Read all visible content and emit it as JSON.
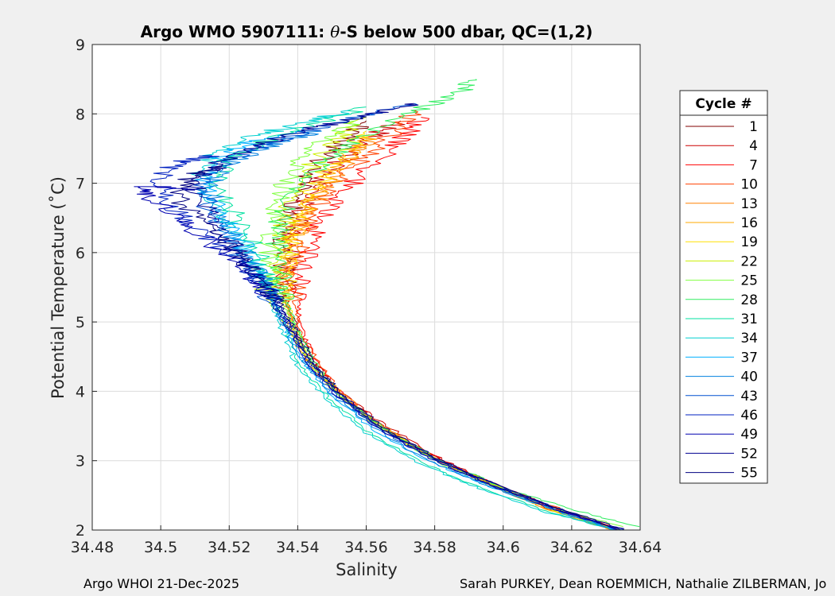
{
  "chart_data": {
    "type": "line",
    "title": "Argo WMO 5907111: θ-S below 500 dbar,  QC=(1,2)",
    "title_parts": {
      "prefix": "Argo WMO 5907111: ",
      "theta": "θ",
      "suffix": "-S below 500 dbar,  QC=(1,2)"
    },
    "xlabel": "Salinity",
    "ylabel": "Potential Temperature (˚C)",
    "xlim": [
      34.48,
      34.64
    ],
    "ylim": [
      2,
      9
    ],
    "xticks": [
      "34.48",
      "34.5",
      "34.52",
      "34.54",
      "34.56",
      "34.58",
      "34.6",
      "34.62",
      "34.64"
    ],
    "yticks": [
      "2",
      "3",
      "4",
      "5",
      "6",
      "7",
      "8",
      "9"
    ],
    "grid": true,
    "legend": {
      "title": "Cycle #",
      "placement": "outside-right"
    },
    "series": [
      {
        "name": "1",
        "color": "#800000",
        "x": [
          34.634,
          34.616,
          34.598,
          34.582,
          34.566,
          34.553,
          34.545,
          34.54,
          34.537,
          34.536,
          34.535,
          34.537,
          34.54,
          34.546,
          34.554,
          34.56
        ],
        "y": [
          2.0,
          2.3,
          2.65,
          3.0,
          3.45,
          3.95,
          4.4,
          4.85,
          5.25,
          5.7,
          6.1,
          6.5,
          6.9,
          7.3,
          7.65,
          7.9
        ]
      },
      {
        "name": "4",
        "color": "#cc0000",
        "x": [
          34.633,
          34.614,
          34.595,
          34.579,
          34.563,
          34.551,
          34.543,
          34.539,
          34.537,
          34.537,
          34.538,
          34.541,
          34.546,
          34.553,
          34.561,
          34.57
        ],
        "y": [
          2.0,
          2.3,
          2.7,
          3.1,
          3.6,
          4.05,
          4.45,
          4.9,
          5.3,
          5.75,
          6.2,
          6.6,
          7.0,
          7.35,
          7.65,
          7.9
        ]
      },
      {
        "name": "7",
        "color": "#ff0000",
        "x": [
          34.634,
          34.616,
          34.598,
          34.582,
          34.566,
          34.553,
          34.545,
          34.541,
          34.54,
          34.541,
          34.544,
          34.549,
          34.556,
          34.565,
          34.572,
          34.576
        ],
        "y": [
          2.0,
          2.3,
          2.65,
          3.0,
          3.45,
          3.95,
          4.45,
          4.9,
          5.3,
          5.75,
          6.2,
          6.6,
          7.0,
          7.4,
          7.7,
          7.95
        ]
      },
      {
        "name": "10",
        "color": "#ff4000",
        "x": [
          34.634,
          34.617,
          34.6,
          34.583,
          34.567,
          34.554,
          34.546,
          34.541,
          34.539,
          34.539,
          34.541,
          34.545,
          34.551,
          34.56,
          34.568,
          34.574
        ],
        "y": [
          2.0,
          2.3,
          2.6,
          2.95,
          3.4,
          3.9,
          4.4,
          4.85,
          5.3,
          5.75,
          6.2,
          6.6,
          7.0,
          7.4,
          7.75,
          8.05
        ]
      },
      {
        "name": "13",
        "color": "#ff8000",
        "x": [
          34.632,
          34.613,
          34.594,
          34.578,
          34.563,
          34.551,
          34.543,
          34.539,
          34.537,
          34.537,
          34.539,
          34.543,
          34.549,
          34.557,
          34.563
        ],
        "y": [
          2.0,
          2.3,
          2.7,
          3.1,
          3.55,
          4.05,
          4.45,
          4.9,
          5.3,
          5.75,
          6.2,
          6.6,
          7.0,
          7.4,
          7.7
        ]
      },
      {
        "name": "16",
        "color": "#ffaa00",
        "x": [
          34.632,
          34.613,
          34.594,
          34.577,
          34.562,
          34.55,
          34.542,
          34.538,
          34.536,
          34.536,
          34.538,
          34.542,
          34.548,
          34.555,
          34.561
        ],
        "y": [
          2.0,
          2.3,
          2.7,
          3.1,
          3.55,
          4.05,
          4.45,
          4.9,
          5.3,
          5.75,
          6.2,
          6.6,
          7.0,
          7.4,
          7.7
        ]
      },
      {
        "name": "19",
        "color": "#ffe000",
        "x": [
          34.633,
          34.614,
          34.595,
          34.579,
          34.564,
          34.551,
          34.543,
          34.539,
          34.537,
          34.537,
          34.538,
          34.541,
          34.546,
          34.553,
          34.56
        ],
        "y": [
          2.0,
          2.3,
          2.7,
          3.05,
          3.5,
          4.0,
          4.45,
          4.9,
          5.3,
          5.75,
          6.2,
          6.6,
          7.0,
          7.45,
          7.75
        ]
      },
      {
        "name": "22",
        "color": "#ccee00",
        "x": [
          34.633,
          34.614,
          34.595,
          34.579,
          34.563,
          34.551,
          34.543,
          34.538,
          34.533,
          34.53,
          34.533,
          34.535,
          34.536,
          34.54,
          34.546,
          34.553,
          34.56
        ],
        "y": [
          2.0,
          2.3,
          2.7,
          3.05,
          3.5,
          4.0,
          4.45,
          4.9,
          5.2,
          5.45,
          5.6,
          6.0,
          6.5,
          6.95,
          7.4,
          7.7,
          7.95
        ]
      },
      {
        "name": "25",
        "color": "#80ff40",
        "x": [
          34.635,
          34.616,
          34.597,
          34.58,
          34.565,
          34.552,
          34.544,
          34.54,
          34.536,
          34.533,
          34.532,
          34.533,
          34.536,
          34.541,
          34.549,
          34.557
        ],
        "y": [
          2.05,
          2.3,
          2.65,
          3.0,
          3.45,
          3.95,
          4.4,
          4.85,
          5.2,
          5.6,
          6.0,
          6.5,
          6.95,
          7.35,
          7.65,
          7.9
        ]
      },
      {
        "name": "28",
        "color": "#30ee60",
        "x": [
          34.639,
          34.62,
          34.601,
          34.584,
          34.567,
          34.553,
          34.545,
          34.54,
          34.537,
          34.535,
          34.534,
          34.535,
          34.54,
          34.548,
          34.56,
          34.575,
          34.588,
          34.592
        ],
        "y": [
          2.05,
          2.3,
          2.6,
          2.95,
          3.4,
          3.9,
          4.4,
          4.85,
          5.25,
          5.65,
          6.1,
          6.5,
          6.95,
          7.35,
          7.7,
          8.05,
          8.35,
          8.5
        ]
      },
      {
        "name": "31",
        "color": "#00e0a0",
        "x": [
          34.634,
          34.614,
          34.594,
          34.577,
          34.561,
          34.549,
          34.541,
          34.537,
          34.534,
          34.532,
          34.528,
          34.522,
          34.516,
          34.52,
          34.53,
          34.545,
          34.56
        ],
        "y": [
          2.0,
          2.25,
          2.6,
          2.95,
          3.4,
          3.9,
          4.35,
          4.8,
          5.2,
          5.6,
          6.0,
          6.5,
          7.0,
          7.35,
          7.6,
          7.85,
          8.1
        ]
      },
      {
        "name": "34",
        "color": "#00d0d0",
        "x": [
          34.633,
          34.613,
          34.593,
          34.576,
          34.56,
          34.548,
          34.54,
          34.536,
          34.533,
          34.53,
          34.525,
          34.518,
          34.511,
          34.515,
          34.525,
          34.54,
          34.555
        ],
        "y": [
          2.0,
          2.25,
          2.6,
          2.95,
          3.4,
          3.9,
          4.35,
          4.8,
          5.2,
          5.6,
          6.05,
          6.55,
          7.1,
          7.4,
          7.65,
          7.85,
          8.05
        ]
      },
      {
        "name": "37",
        "color": "#00b0ff",
        "x": [
          34.633,
          34.614,
          34.595,
          34.578,
          34.562,
          34.55,
          34.542,
          34.537,
          34.534,
          34.53,
          34.524,
          34.517,
          34.512,
          34.517,
          34.527,
          34.542
        ],
        "y": [
          2.0,
          2.3,
          2.65,
          3.0,
          3.45,
          3.95,
          4.4,
          4.85,
          5.25,
          5.65,
          6.1,
          6.6,
          7.05,
          7.35,
          7.6,
          7.8
        ]
      },
      {
        "name": "40",
        "color": "#0080e0",
        "x": [
          34.633,
          34.614,
          34.595,
          34.578,
          34.563,
          34.55,
          34.542,
          34.537,
          34.533,
          34.529,
          34.523,
          34.517,
          34.514,
          34.52,
          34.532,
          34.547
        ],
        "y": [
          2.0,
          2.3,
          2.65,
          3.0,
          3.45,
          3.95,
          4.4,
          4.85,
          5.25,
          5.65,
          6.1,
          6.55,
          7.0,
          7.3,
          7.55,
          7.75
        ]
      },
      {
        "name": "43",
        "color": "#0050d0",
        "x": [
          34.634,
          34.615,
          34.596,
          34.58,
          34.564,
          34.551,
          34.543,
          34.538,
          34.533,
          34.528,
          34.521,
          34.515,
          34.512,
          34.518,
          34.53,
          34.546,
          34.562,
          34.574
        ],
        "y": [
          2.0,
          2.3,
          2.65,
          3.0,
          3.45,
          3.95,
          4.4,
          4.85,
          5.25,
          5.65,
          6.05,
          6.45,
          6.95,
          7.3,
          7.55,
          7.8,
          8.0,
          8.15
        ]
      },
      {
        "name": "46",
        "color": "#0020c0",
        "x": [
          34.635,
          34.616,
          34.598,
          34.581,
          34.565,
          34.552,
          34.544,
          34.539,
          34.534,
          34.528,
          34.52,
          34.51,
          34.502,
          34.5,
          34.505,
          34.515
        ],
        "y": [
          2.0,
          2.3,
          2.65,
          3.0,
          3.45,
          3.95,
          4.4,
          4.85,
          5.25,
          5.65,
          6.0,
          6.35,
          6.75,
          7.1,
          7.3,
          7.4
        ]
      },
      {
        "name": "49",
        "color": "#0000b0",
        "x": [
          34.634,
          34.615,
          34.596,
          34.58,
          34.564,
          34.551,
          34.543,
          34.538,
          34.533,
          34.527,
          34.518,
          34.508,
          34.497,
          34.494,
          34.5,
          34.51
        ],
        "y": [
          2.0,
          2.3,
          2.65,
          3.0,
          3.45,
          3.95,
          4.4,
          4.85,
          5.25,
          5.65,
          6.0,
          6.4,
          6.8,
          6.95,
          6.95,
          6.9
        ]
      },
      {
        "name": "52",
        "color": "#000090",
        "x": [
          34.635,
          34.616,
          34.597,
          34.581,
          34.565,
          34.552,
          34.544,
          34.539,
          34.534,
          34.529,
          34.522,
          34.515,
          34.51,
          34.515,
          34.528,
          34.545,
          34.562,
          34.574
        ],
        "y": [
          2.0,
          2.3,
          2.65,
          3.0,
          3.45,
          3.95,
          4.4,
          4.85,
          5.25,
          5.65,
          6.05,
          6.45,
          6.9,
          7.25,
          7.55,
          7.8,
          8.0,
          8.15
        ]
      },
      {
        "name": "55",
        "color": "#000080",
        "x": [
          34.636,
          34.617,
          34.598,
          34.582,
          34.566,
          34.553,
          34.545,
          34.54,
          34.535,
          34.529,
          34.521,
          34.512,
          34.505,
          34.508,
          34.518
        ],
        "y": [
          2.0,
          2.3,
          2.65,
          3.0,
          3.45,
          3.95,
          4.4,
          4.85,
          5.25,
          5.65,
          6.05,
          6.4,
          6.8,
          7.1,
          7.25
        ]
      }
    ]
  },
  "footer": {
    "left": "Argo WHOI 21-Dec-2025",
    "right": "Sarah PURKEY, Dean ROEMMICH, Nathalie ZILBERMAN, Jo"
  }
}
